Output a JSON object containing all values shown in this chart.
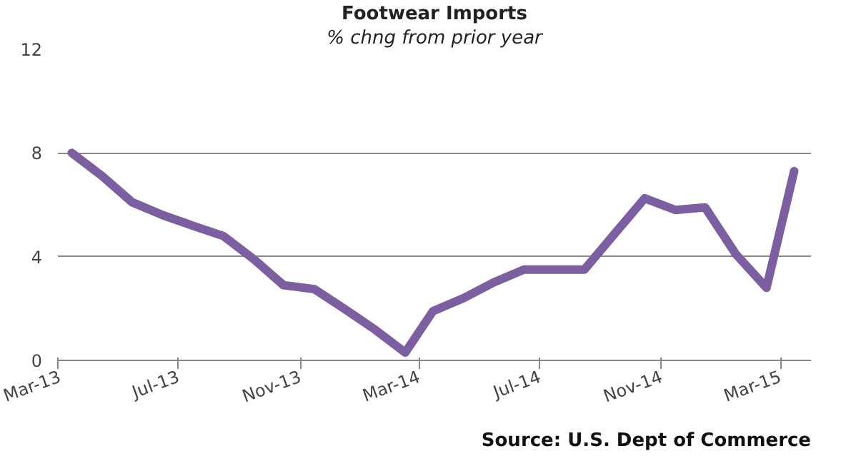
{
  "chart_data": {
    "type": "line",
    "title": "Footwear Imports",
    "subtitle": "% chng from prior year",
    "x": [
      "2013-03-15",
      "2013-04-15",
      "2013-05-15",
      "2013-06-15",
      "2013-07-15",
      "2013-08-15",
      "2013-09-15",
      "2013-10-15",
      "2013-11-15",
      "2013-12-15",
      "2014-01-15",
      "2014-02-15",
      "2014-03-15",
      "2014-04-15",
      "2014-05-15",
      "2014-06-15",
      "2014-07-15",
      "2014-08-15",
      "2014-09-15",
      "2014-10-15",
      "2014-11-15",
      "2014-12-15",
      "2015-01-15",
      "2015-02-15",
      "2015-03-15"
    ],
    "series": [
      {
        "color": "#7b5fa0",
        "values": [
          8.0,
          7.1,
          6.1,
          5.6,
          5.2,
          4.8,
          3.9,
          2.9,
          2.75,
          2.0,
          1.2,
          0.3,
          1.9,
          2.4,
          3.0,
          3.5,
          3.5,
          3.5,
          4.9,
          6.25,
          5.8,
          5.9,
          4.1,
          2.8,
          7.3
        ]
      }
    ],
    "xlim": [
      "2013-03-01",
      "2015-04-01"
    ],
    "xticks": [
      {
        "value": "2013-03-01",
        "label": "Mar-13"
      },
      {
        "value": "2013-07-01",
        "label": "Jul-13"
      },
      {
        "value": "2013-11-01",
        "label": "Nov-13"
      },
      {
        "value": "2014-03-01",
        "label": "Mar-14"
      },
      {
        "value": "2014-07-01",
        "label": "Jul-14"
      },
      {
        "value": "2014-11-01",
        "label": "Nov-14"
      },
      {
        "value": "2015-03-01",
        "label": "Mar-15"
      }
    ],
    "ylim": [
      0,
      12
    ],
    "yticks": [
      0,
      4,
      8,
      12
    ],
    "grid": "y",
    "marker": "none",
    "line_style": "solid",
    "annotations": [
      "Source: U.S. Dept of Commerce"
    ]
  }
}
